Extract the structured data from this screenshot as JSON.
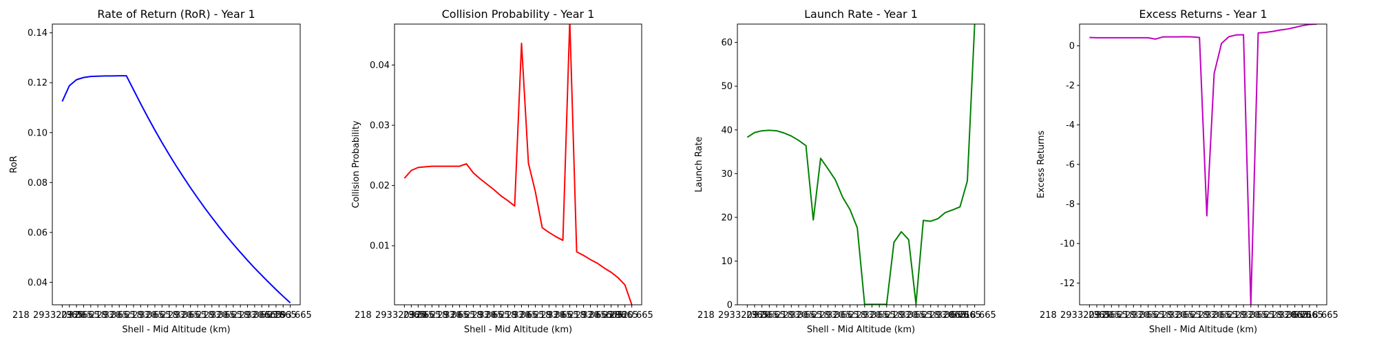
{
  "chart_data": [
    {
      "type": "line",
      "title": "Rate of Return (RoR) - Year 1",
      "xlabel": "Shell - Mid Altitude (km)",
      "ylabel": "RoR",
      "color": "#0000ff",
      "x_ticklabels_shown": [
        "218",
        "293",
        "320",
        "365",
        "665"
      ],
      "yticks": [
        "0.04",
        "0.06",
        "0.08",
        "0.10",
        "0.12",
        "0.14"
      ],
      "ytick_values": [
        0.04,
        0.06,
        0.08,
        0.1,
        0.12,
        0.14
      ],
      "ylim": [
        0.031,
        0.1435
      ],
      "series": [
        {
          "values": [
            0.1125,
            0.1188,
            0.1212,
            0.1221,
            0.1225,
            0.1226,
            0.1227,
            0.1227,
            0.1228,
            0.1228,
            0.1172,
            0.1116,
            0.1062,
            0.101,
            0.096,
            0.0912,
            0.0866,
            0.0822,
            0.0779,
            0.0738,
            0.0698,
            0.066,
            0.0623,
            0.0587,
            0.0553,
            0.052,
            0.0488,
            0.0457,
            0.0428,
            0.0399,
            0.0371,
            0.0344,
            0.0318
          ]
        }
      ]
    },
    {
      "type": "line",
      "title": "Collision Probability - Year 1",
      "xlabel": "Shell - Mid Altitude (km)",
      "ylabel": "Collision Probability",
      "color": "#ff0000",
      "x_ticklabels_shown": [
        "218",
        "293",
        "320",
        "365",
        "665"
      ],
      "yticks": [
        "0.01",
        "0.02",
        "0.03",
        "0.04"
      ],
      "ytick_values": [
        0.01,
        0.02,
        0.03,
        0.04
      ],
      "ylim": [
        0.0002,
        0.0468
      ],
      "series": [
        {
          "values": [
            0.0212,
            0.0225,
            0.023,
            0.0231,
            0.0232,
            0.0232,
            0.0232,
            0.0232,
            0.0232,
            0.0236,
            0.0221,
            0.0211,
            0.0202,
            0.0193,
            0.0183,
            0.0175,
            0.0166,
            0.0436,
            0.0237,
            0.019,
            0.013,
            0.0122,
            0.0115,
            0.0109,
            0.0474,
            0.009,
            0.0084,
            0.0077,
            0.0071,
            0.0063,
            0.0056,
            0.0047,
            0.0035,
            0.0002
          ]
        }
      ]
    },
    {
      "type": "line",
      "title": "Launch Rate - Year 1",
      "xlabel": "Shell - Mid Altitude (km)",
      "ylabel": "Launch Rate",
      "color": "#008000",
      "x_ticklabels_shown": [
        "218",
        "293",
        "320",
        "365",
        "665"
      ],
      "yticks": [
        "0",
        "10",
        "20",
        "30",
        "40",
        "50",
        "60"
      ],
      "ytick_values": [
        0,
        10,
        20,
        30,
        40,
        50,
        60
      ],
      "ylim": [
        0,
        64.2
      ],
      "series": [
        {
          "values": [
            38.3,
            39.4,
            39.8,
            39.9,
            39.8,
            39.3,
            38.6,
            37.6,
            36.4,
            19.4,
            33.5,
            31.1,
            28.6,
            24.6,
            21.8,
            17.6,
            0.1,
            0.1,
            0.1,
            0.1,
            14.3,
            16.7,
            14.9,
            0.2,
            19.3,
            19.1,
            19.7,
            21.1,
            21.7,
            22.4,
            28.3,
            64.2
          ]
        }
      ]
    },
    {
      "type": "line",
      "title": "Excess Returns - Year 1",
      "xlabel": "Shell - Mid Altitude (km)",
      "ylabel": "Excess Returns",
      "color": "#bf00bf",
      "x_ticklabels_shown": [
        "218",
        "293",
        "320",
        "365",
        "665"
      ],
      "yticks": [
        "-12",
        "-10",
        "-8",
        "-6",
        "-4",
        "-2",
        "0"
      ],
      "ytick_values": [
        -12,
        -10,
        -8,
        -6,
        -4,
        -2,
        0
      ],
      "ylim": [
        -13.1,
        1.1
      ],
      "series": [
        {
          "values": [
            0.42,
            0.41,
            0.41,
            0.41,
            0.41,
            0.41,
            0.41,
            0.41,
            0.41,
            0.34,
            0.45,
            0.45,
            0.45,
            0.46,
            0.45,
            0.42,
            -8.6,
            -1.4,
            0.12,
            0.46,
            0.55,
            0.56,
            -13.1,
            0.65,
            0.68,
            0.73,
            0.8,
            0.85,
            0.93,
            1.02,
            1.08,
            1.1
          ]
        }
      ]
    }
  ]
}
